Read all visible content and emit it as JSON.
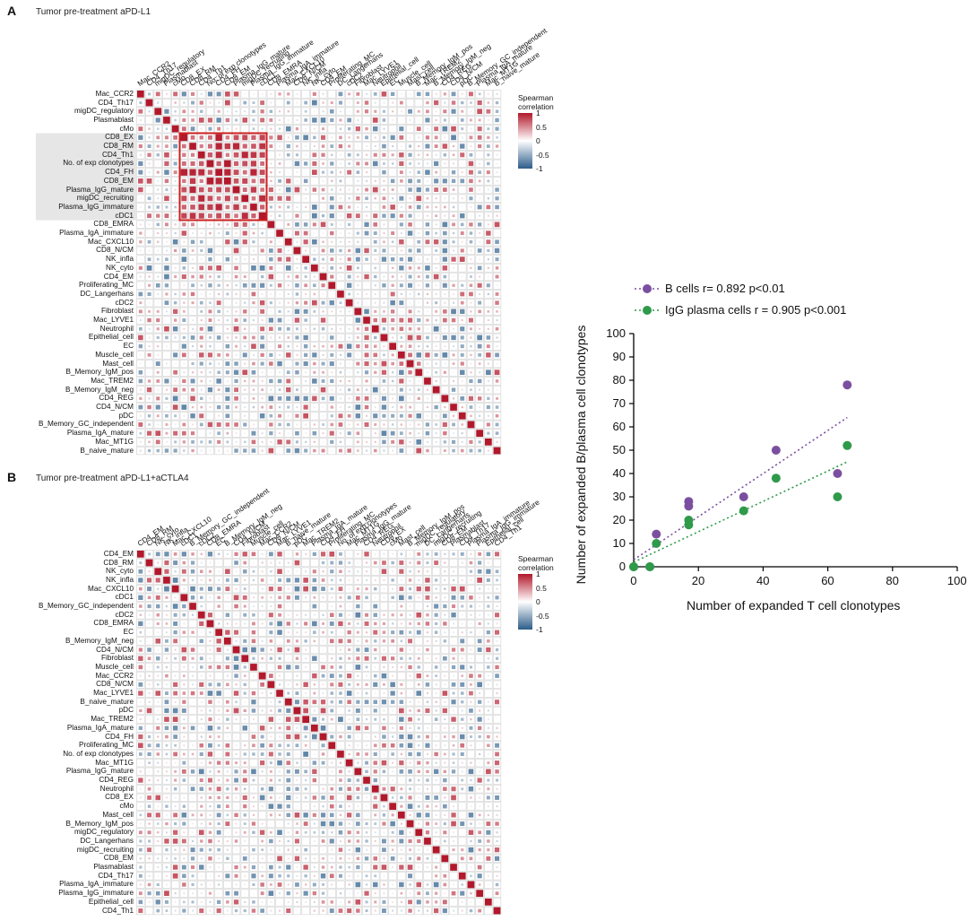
{
  "panel_a": {
    "letter": "A",
    "title": "Tumor pre-treatment aPD-L1",
    "labels": [
      "Mac_CCR2",
      "CD4_Th17",
      "migDC_regulatory",
      "Plasmablast",
      "cMo",
      "CD8_EX",
      "CD8_RM",
      "CD4_Th1",
      "No. of exp clonotypes",
      "CD4_FH",
      "CD8_EM",
      "Plasma_IgG_mature",
      "migDC_recruiting",
      "Plasma_IgG_immature",
      "cDC1",
      "CD8_EMRA",
      "Plasma_IgA_immature",
      "Mac_CXCL10",
      "CD8_N/CM",
      "NK_infla",
      "NK_cyto",
      "CD4_EM",
      "Proliferating_MC",
      "DC_Langerhans",
      "cDC2",
      "Fibroblast",
      "Mac_LYVE1",
      "Neutrophil",
      "Epithelial_cell",
      "EC",
      "Muscle_cell",
      "Mast_cell",
      "B_Memory_IgM_pos",
      "Mac_TREM2",
      "B_Memory_IgM_neg",
      "CD4_REG",
      "CD4_N/CM",
      "pDC",
      "B_Memory_GC_independent",
      "Plasma_IgA_mature",
      "Mac_MT1G",
      "B_naive_mature"
    ]
  },
  "panel_b": {
    "letter": "B",
    "title": "Tumor pre-treatment aPD-L1+aCTLA4",
    "labels": [
      "CD4_EM",
      "CD8_RM",
      "NK_cyto",
      "NK_infla",
      "Mac_CXCL10",
      "cDC1",
      "B_Memory_GC_independent",
      "cDC2",
      "CD8_EMRA",
      "EC",
      "B_Memory_IgM_neg",
      "CD4_N/CM",
      "Fibroblast",
      "Muscle_cell",
      "Mac_CCR2",
      "CD8_N/CM",
      "Mac_LYVE1",
      "B_naive_mature",
      "pDC",
      "Mac_TREM2",
      "Plasma_IgA_mature",
      "CD4_FH",
      "Proliferating_MC",
      "No. of exp clonotypes",
      "Mac_MT1G",
      "Plasma_IgG_mature",
      "CD4_REG",
      "Neutrophil",
      "CD8_EX",
      "cMo",
      "Mast_cell",
      "B_Memory_IgM_pos",
      "migDC_regulatory",
      "DC_Langerhans",
      "migDC_recruiting",
      "CD8_EM",
      "Plasmablast",
      "CD4_Th17",
      "Plasma_IgA_immature",
      "Plasma_IgG_immature",
      "Epithelial_cell",
      "CD4_Th1"
    ]
  },
  "heatmap_legend": {
    "title_line1": "Spearman",
    "title_line2": "correlation",
    "ticks": [
      "1",
      "0.5",
      "0",
      "-0.5",
      "-1"
    ]
  },
  "colors": {
    "positive": "#b2182b",
    "negative": "#2c5d8a",
    "highlight_box": "#cc1f1f",
    "purple": "#7b4fa0",
    "green": "#2e9a4a"
  },
  "chart_data": [
    {
      "type": "heatmap",
      "title": "Tumor pre-treatment aPD-L1",
      "value_range": [
        -1,
        1
      ],
      "colorbar_label": "Spearman correlation"
    },
    {
      "type": "heatmap",
      "title": "Tumor pre-treatment aPD-L1+aCTLA4",
      "value_range": [
        -1,
        1
      ],
      "colorbar_label": "Spearman correlation"
    },
    {
      "type": "scatter",
      "xlabel": "Number of expanded T cell clonotypes",
      "ylabel": "Number of expanded B/plasma cell clonotypes",
      "xlim": [
        0,
        100
      ],
      "ylim": [
        0,
        100
      ],
      "xticks": [
        "0",
        "20",
        "40",
        "60",
        "80",
        "100"
      ],
      "yticks": [
        "0",
        "10",
        "20",
        "30",
        "40",
        "50",
        "60",
        "70",
        "80",
        "90",
        "100"
      ],
      "series": [
        {
          "name": "B cells",
          "legend": "B cells r= 0.892 p<0.01",
          "x": [
            0,
            5,
            7,
            17,
            17,
            34,
            44,
            63,
            66
          ],
          "y": [
            0,
            0,
            14,
            28,
            26,
            30,
            50,
            40,
            78
          ],
          "fit": [
            [
              0,
              3
            ],
            [
              66,
              64
            ]
          ]
        },
        {
          "name": "IgG plasma cells",
          "legend": "IgG plasma cells r = 0.905 p<0.001",
          "x": [
            0,
            5,
            7,
            17,
            17,
            34,
            44,
            63,
            66
          ],
          "y": [
            0,
            0,
            10,
            20,
            18,
            24,
            38,
            30,
            52
          ],
          "fit": [
            [
              0,
              2
            ],
            [
              66,
              45
            ]
          ]
        }
      ]
    }
  ]
}
